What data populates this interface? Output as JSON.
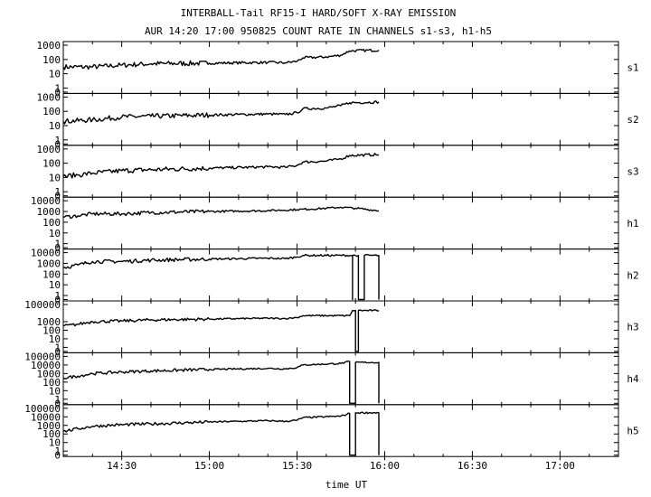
{
  "title_line1": "INTERBALL-Tail RF15-I HARD/SOFT X-RAY EMISSION",
  "title_line2": "AUR 14:20 17:00 950825  COUNT RATE IN CHANNELS s1-s3, h1-h5",
  "colors": {
    "line": "#000000",
    "background": "#ffffff"
  },
  "chart_data": {
    "type": "line",
    "xlabel": "time UT",
    "x_unit": "UT time",
    "xlim": [
      "14:10",
      "17:20"
    ],
    "x_ticks": [
      "14:30",
      "15:00",
      "15:30",
      "16:00",
      "16:30",
      "17:00"
    ],
    "y_scale": "log",
    "grid": false,
    "panels": [
      {
        "channel": "s1",
        "y_ticks": [
          "1000",
          "100",
          "10",
          "1",
          "0"
        ],
        "points": [
          [
            "14:10",
            30
          ],
          [
            "14:20",
            30
          ],
          [
            "14:30",
            40
          ],
          [
            "14:40",
            50
          ],
          [
            "15:00",
            55
          ],
          [
            "15:20",
            62
          ],
          [
            "15:26",
            58
          ],
          [
            "15:30",
            75
          ],
          [
            "15:32",
            130
          ],
          [
            "15:40",
            150
          ],
          [
            "15:45",
            200
          ],
          [
            "15:48",
            400
          ],
          [
            "15:58",
            450
          ]
        ]
      },
      {
        "channel": "s2",
        "y_ticks": [
          "1000",
          "100",
          "10",
          "1",
          "0"
        ],
        "points": [
          [
            "14:10",
            20
          ],
          [
            "14:20",
            25
          ],
          [
            "14:30",
            40
          ],
          [
            "14:40",
            45
          ],
          [
            "15:00",
            55
          ],
          [
            "15:20",
            65
          ],
          [
            "15:26",
            60
          ],
          [
            "15:30",
            80
          ],
          [
            "15:32",
            150
          ],
          [
            "15:40",
            170
          ],
          [
            "15:45",
            250
          ],
          [
            "15:48",
            400
          ],
          [
            "15:58",
            450
          ]
        ]
      },
      {
        "channel": "s3",
        "y_ticks": [
          "1000",
          "100",
          "10",
          "1",
          "0"
        ],
        "points": [
          [
            "14:10",
            12
          ],
          [
            "14:15",
            15
          ],
          [
            "14:20",
            20
          ],
          [
            "14:30",
            30
          ],
          [
            "14:40",
            35
          ],
          [
            "15:00",
            45
          ],
          [
            "15:20",
            55
          ],
          [
            "15:26",
            52
          ],
          [
            "15:30",
            70
          ],
          [
            "15:32",
            120
          ],
          [
            "15:40",
            140
          ],
          [
            "15:45",
            200
          ],
          [
            "15:48",
            350
          ],
          [
            "15:58",
            400
          ]
        ]
      },
      {
        "channel": "h1",
        "y_ticks": [
          "10000",
          "1000",
          "100",
          "10",
          "1",
          "0"
        ],
        "points": [
          [
            "14:10",
            300
          ],
          [
            "14:15",
            400
          ],
          [
            "14:20",
            600
          ],
          [
            "14:30",
            600
          ],
          [
            "14:40",
            800
          ],
          [
            "15:00",
            1000
          ],
          [
            "15:20",
            1200
          ],
          [
            "15:30",
            1500
          ],
          [
            "15:40",
            2000
          ],
          [
            "15:45",
            2500
          ],
          [
            "15:50",
            2000
          ],
          [
            "15:58",
            1200
          ]
        ]
      },
      {
        "channel": "h2",
        "y_ticks": [
          "10000",
          "1000",
          "100",
          "10",
          "1",
          "0"
        ],
        "points": [
          [
            "14:10",
            400
          ],
          [
            "14:15",
            700
          ],
          [
            "14:20",
            1500
          ],
          [
            "14:30",
            1500
          ],
          [
            "14:40",
            2000
          ],
          [
            "15:00",
            2500
          ],
          [
            "15:20",
            3000
          ],
          [
            "15:26",
            2800
          ],
          [
            "15:30",
            4000
          ],
          [
            "15:32",
            5500
          ],
          [
            "15:49",
            5500
          ],
          [
            "15:49",
            0
          ],
          [
            "15:49",
            5500
          ],
          [
            "15:51",
            5500
          ],
          [
            "15:51",
            0
          ],
          [
            "15:53",
            0
          ],
          [
            "15:53",
            5500
          ],
          [
            "15:58",
            5500
          ],
          [
            "15:58",
            0
          ]
        ]
      },
      {
        "channel": "h3",
        "y_ticks": [
          "100000",
          "1000",
          "100",
          "10",
          "1",
          "0"
        ],
        "points": [
          [
            "14:10",
            300
          ],
          [
            "14:15",
            500
          ],
          [
            "14:20",
            1000
          ],
          [
            "14:30",
            1200
          ],
          [
            "14:40",
            1600
          ],
          [
            "15:00",
            2000
          ],
          [
            "15:20",
            2500
          ],
          [
            "15:26",
            2300
          ],
          [
            "15:30",
            3000
          ],
          [
            "15:32",
            5000
          ],
          [
            "15:48",
            5000
          ],
          [
            "15:49",
            20000
          ],
          [
            "15:50",
            20000
          ],
          [
            "15:50",
            0
          ],
          [
            "15:51",
            0
          ],
          [
            "15:51",
            20000
          ],
          [
            "15:58",
            20000
          ]
        ]
      },
      {
        "channel": "h4",
        "y_ticks": [
          "100000",
          "10000",
          "1000",
          "100",
          "10",
          "1",
          "0"
        ],
        "points": [
          [
            "14:10",
            300
          ],
          [
            "14:15",
            500
          ],
          [
            "14:20",
            1000
          ],
          [
            "14:30",
            1500
          ],
          [
            "14:40",
            2000
          ],
          [
            "15:00",
            3000
          ],
          [
            "15:20",
            4000
          ],
          [
            "15:26",
            3500
          ],
          [
            "15:30",
            5000
          ],
          [
            "15:32",
            10000
          ],
          [
            "15:45",
            15000
          ],
          [
            "15:48",
            25000
          ],
          [
            "15:48",
            0
          ],
          [
            "15:50",
            0
          ],
          [
            "15:50",
            20000
          ],
          [
            "15:58",
            20000
          ],
          [
            "15:58",
            0
          ]
        ]
      },
      {
        "channel": "h5",
        "y_ticks": [
          "100000",
          "10000",
          "1000",
          "100",
          "10",
          "1",
          "0"
        ],
        "points": [
          [
            "14:10",
            200
          ],
          [
            "14:15",
            400
          ],
          [
            "14:20",
            800
          ],
          [
            "14:30",
            1200
          ],
          [
            "14:40",
            1500
          ],
          [
            "15:00",
            2500
          ],
          [
            "15:20",
            3500
          ],
          [
            "15:26",
            3000
          ],
          [
            "15:30",
            4000
          ],
          [
            "15:32",
            8000
          ],
          [
            "15:45",
            12000
          ],
          [
            "15:48",
            25000
          ],
          [
            "15:48",
            0
          ],
          [
            "15:50",
            0
          ],
          [
            "15:50",
            30000
          ],
          [
            "15:58",
            30000
          ],
          [
            "15:58",
            0
          ]
        ]
      }
    ]
  }
}
